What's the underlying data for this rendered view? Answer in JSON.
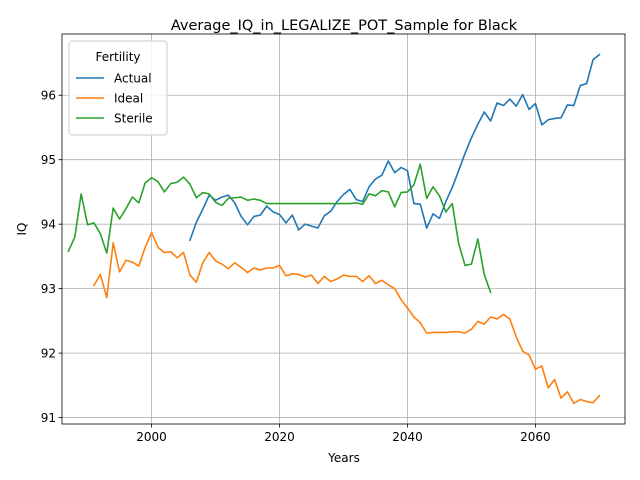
{
  "chart_data": {
    "type": "line",
    "title": "Average_IQ_in_LEGALIZE_POT_Sample for Black",
    "xlabel": "Years",
    "ylabel": "IQ",
    "xlim": [
      1986,
      2074
    ],
    "ylim": [
      90.9,
      96.95
    ],
    "xticks": [
      2000,
      2020,
      2040,
      2060
    ],
    "yticks": [
      91,
      92,
      93,
      94,
      95,
      96
    ],
    "grid": true,
    "legend": {
      "title": "Fertility",
      "position": "upper left"
    },
    "series": [
      {
        "name": "Actual",
        "color": "#1f77b4",
        "x": [
          2006,
          2007,
          2008,
          2009,
          2010,
          2011,
          2012,
          2013,
          2014,
          2015,
          2016,
          2017,
          2018,
          2019,
          2020,
          2021,
          2022,
          2023,
          2024,
          2025,
          2026,
          2027,
          2028,
          2029,
          2030,
          2031,
          2032,
          2033,
          2034,
          2035,
          2036,
          2037,
          2038,
          2039,
          2040,
          2041,
          2042,
          2043,
          2044,
          2045,
          2046,
          2047,
          2048,
          2049,
          2050,
          2051,
          2052,
          2053,
          2054,
          2055,
          2056,
          2057,
          2058,
          2059,
          2060,
          2061,
          2062,
          2063,
          2064,
          2065,
          2066,
          2067,
          2068,
          2069,
          2070
        ],
        "y": [
          93.75,
          94.03,
          94.23,
          94.45,
          94.37,
          94.42,
          94.45,
          94.33,
          94.12,
          93.99,
          94.12,
          94.14,
          94.28,
          94.19,
          94.15,
          94.02,
          94.14,
          93.91,
          94.0,
          93.97,
          93.94,
          94.13,
          94.2,
          94.35,
          94.46,
          94.54,
          94.38,
          94.35,
          94.58,
          94.7,
          94.76,
          94.98,
          94.8,
          94.88,
          94.83,
          94.32,
          94.31,
          93.94,
          94.16,
          94.09,
          94.35,
          94.57,
          94.83,
          95.1,
          95.34,
          95.55,
          95.74,
          95.6,
          95.88,
          95.84,
          95.94,
          95.83,
          96.01,
          95.78,
          95.87,
          95.54,
          95.62,
          95.64,
          95.65,
          95.85,
          95.84,
          96.15,
          96.18,
          96.55,
          96.63
        ]
      },
      {
        "name": "Ideal",
        "color": "#ff7f0e",
        "x": [
          1991,
          1992,
          1993,
          1994,
          1995,
          1996,
          1997,
          1998,
          1999,
          2000,
          2001,
          2002,
          2003,
          2004,
          2005,
          2006,
          2007,
          2008,
          2009,
          2010,
          2011,
          2012,
          2013,
          2014,
          2015,
          2016,
          2017,
          2018,
          2019,
          2020,
          2021,
          2022,
          2023,
          2024,
          2025,
          2026,
          2027,
          2028,
          2029,
          2030,
          2031,
          2032,
          2033,
          2034,
          2035,
          2036,
          2037,
          2038,
          2039,
          2040,
          2041,
          2042,
          2043,
          2044,
          2045,
          2046,
          2047,
          2048,
          2049,
          2050,
          2051,
          2052,
          2053,
          2054,
          2055,
          2056,
          2057,
          2058,
          2059,
          2060,
          2061,
          2062,
          2063,
          2064,
          2065,
          2066,
          2067,
          2068,
          2069,
          2070
        ],
        "y": [
          93.05,
          93.22,
          92.86,
          93.71,
          93.26,
          93.44,
          93.41,
          93.35,
          93.64,
          93.87,
          93.64,
          93.56,
          93.57,
          93.48,
          93.56,
          93.21,
          93.1,
          93.4,
          93.56,
          93.43,
          93.38,
          93.31,
          93.4,
          93.33,
          93.25,
          93.32,
          93.29,
          93.32,
          93.32,
          93.36,
          93.2,
          93.23,
          93.22,
          93.18,
          93.21,
          93.08,
          93.19,
          93.11,
          93.15,
          93.21,
          93.19,
          93.19,
          93.11,
          93.2,
          93.08,
          93.13,
          93.06,
          93.0,
          92.83,
          92.7,
          92.56,
          92.47,
          92.31,
          92.32,
          92.32,
          92.32,
          92.33,
          92.33,
          92.31,
          92.37,
          92.49,
          92.45,
          92.56,
          92.53,
          92.6,
          92.53,
          92.25,
          92.03,
          91.97,
          91.75,
          91.8,
          91.46,
          91.59,
          91.3,
          91.4,
          91.22,
          91.28,
          91.25,
          91.23,
          91.34
        ]
      },
      {
        "name": "Sterile",
        "color": "#2ca02c",
        "x": [
          1987,
          1988,
          1989,
          1990,
          1991,
          1992,
          1993,
          1994,
          1995,
          1996,
          1997,
          1998,
          1999,
          2000,
          2001,
          2002,
          2003,
          2004,
          2005,
          2006,
          2007,
          2008,
          2009,
          2010,
          2011,
          2012,
          2013,
          2014,
          2015,
          2016,
          2017,
          2018,
          2019,
          2020,
          2021,
          2022,
          2023,
          2024,
          2025,
          2026,
          2027,
          2028,
          2029,
          2030,
          2031,
          2032,
          2033,
          2034,
          2035,
          2036,
          2037,
          2038,
          2039,
          2040,
          2041,
          2042,
          2043,
          2044,
          2045,
          2046,
          2047,
          2048,
          2049,
          2050,
          2051,
          2052,
          2053
        ],
        "y": [
          93.58,
          93.8,
          94.47,
          93.99,
          94.02,
          93.85,
          93.55,
          94.25,
          94.08,
          94.24,
          94.42,
          94.33,
          94.64,
          94.72,
          94.66,
          94.5,
          94.63,
          94.65,
          94.73,
          94.62,
          94.41,
          94.49,
          94.47,
          94.34,
          94.29,
          94.4,
          94.41,
          94.42,
          94.37,
          94.39,
          94.37,
          94.32,
          94.32,
          94.32,
          94.32,
          94.32,
          94.32,
          94.32,
          94.32,
          94.32,
          94.32,
          94.32,
          94.32,
          94.32,
          94.32,
          94.33,
          94.31,
          94.47,
          94.44,
          94.52,
          94.5,
          94.27,
          94.49,
          94.5,
          94.61,
          94.93,
          94.4,
          94.58,
          94.44,
          94.19,
          94.32,
          93.7,
          93.36,
          93.38,
          93.77,
          93.22,
          92.94
        ]
      }
    ]
  }
}
